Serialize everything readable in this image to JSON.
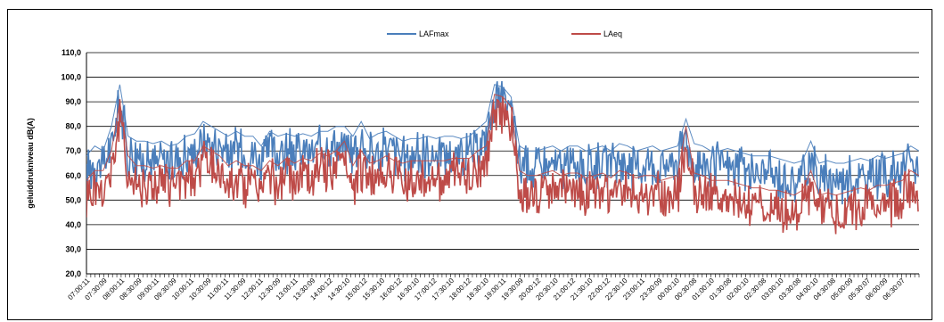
{
  "chart_data": {
    "type": "line",
    "title": "",
    "xlabel": "",
    "ylabel": "geluiddrukniveau dB(A)",
    "ylim": [
      20,
      110
    ],
    "yticks": [
      "20,0",
      "30,0",
      "40,0",
      "50,0",
      "60,0",
      "70,0",
      "80,0",
      "90,0",
      "100,0",
      "110,0"
    ],
    "grid": true,
    "legend": "top-center",
    "x_ticks": [
      "07:00:11",
      "07:30:09",
      "08:00:11",
      "08:30:09",
      "09:00:11",
      "09:30:09",
      "10:00:11",
      "10:30:09",
      "11:00:11",
      "11:30:09",
      "12:00:11",
      "12:30:09",
      "13:00:11",
      "13:30:09",
      "14:00:12",
      "14:30:10",
      "15:00:12",
      "15:30:10",
      "16:00:12",
      "16:30:10",
      "17:00:12",
      "17:30:10",
      "18:00:12",
      "18:30:10",
      "19:00:11",
      "19:30:09",
      "20:00:12",
      "20:30:10",
      "21:00:12",
      "21:30:10",
      "22:00:12",
      "22:30:10",
      "23:00:11",
      "23:30:09",
      "00:00:10",
      "00:30:08",
      "01:00:10",
      "01:30:08",
      "02:00:10",
      "02:30:08",
      "03:00:10",
      "03:30:08",
      "04:00:10",
      "04:30:08",
      "05:00:09",
      "05:30:07",
      "06:00:09",
      "06:30:07"
    ],
    "series": [
      {
        "name": "LAFmax",
        "color": "#4a7ebb",
        "values": [
          68,
          72,
          70,
          80,
          97,
          76,
          74,
          74,
          73,
          74,
          72,
          73,
          76,
          77,
          82,
          80,
          78,
          76,
          78,
          76,
          76,
          72,
          78,
          76,
          77,
          76,
          77,
          76,
          78,
          78,
          80,
          80,
          76,
          82,
          75,
          77,
          78,
          76,
          74,
          75,
          75,
          76,
          75,
          76,
          76,
          75,
          76,
          79,
          82,
          97,
          96,
          92,
          72,
          70,
          70,
          71,
          72,
          70,
          72,
          72,
          70,
          71,
          72,
          70,
          73,
          72,
          70,
          71,
          72,
          70,
          71,
          72,
          83,
          73,
          72,
          70,
          70,
          71,
          70,
          69,
          68,
          68,
          68,
          67,
          66,
          65,
          66,
          74,
          65,
          66,
          65,
          65,
          66,
          67,
          66,
          68,
          67,
          68,
          69,
          72,
          70
        ]
      },
      {
        "name": "LAeq",
        "color": "#be4b48",
        "values": [
          58,
          62,
          62,
          70,
          90,
          68,
          64,
          64,
          63,
          64,
          63,
          63,
          66,
          66,
          72,
          70,
          68,
          64,
          66,
          64,
          64,
          62,
          66,
          64,
          67,
          65,
          67,
          66,
          69,
          68,
          70,
          74,
          64,
          70,
          65,
          66,
          68,
          66,
          65,
          66,
          66,
          66,
          66,
          66,
          67,
          67,
          67,
          70,
          72,
          93,
          92,
          88,
          62,
          60,
          60,
          61,
          62,
          60,
          61,
          61,
          59,
          60,
          61,
          59,
          62,
          61,
          59,
          60,
          60,
          58,
          59,
          60,
          80,
          61,
          60,
          58,
          58,
          58,
          57,
          56,
          55,
          55,
          54,
          54,
          53,
          52,
          54,
          62,
          52,
          53,
          52,
          53,
          54,
          55,
          54,
          56,
          56,
          57,
          58,
          62,
          60
        ]
      }
    ]
  }
}
